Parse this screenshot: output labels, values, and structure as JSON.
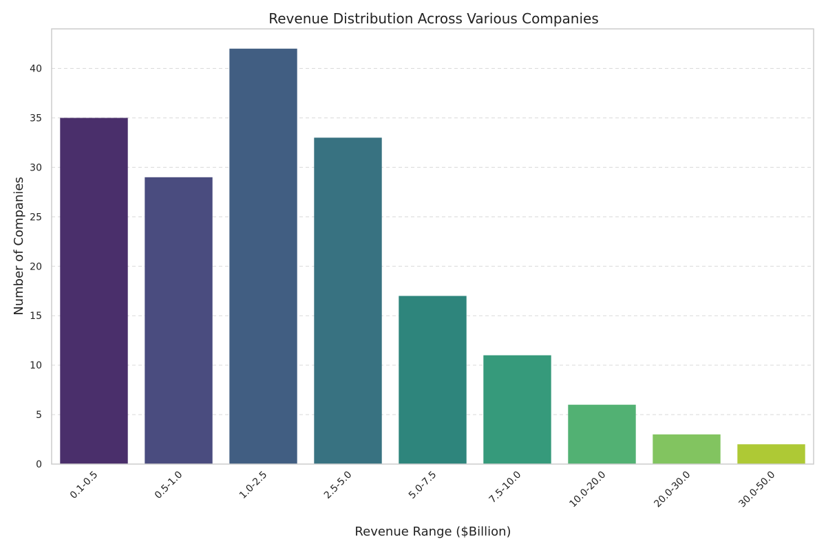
{
  "chart_data": {
    "type": "bar",
    "title": "Revenue Distribution Across Various Companies",
    "xlabel": "Revenue Range ($Billion)",
    "ylabel": "Number of Companies",
    "categories": [
      "0.1-0.5",
      "0.5-1.0",
      "1.0-2.5",
      "2.5-5.0",
      "5.0-7.5",
      "7.5-10.0",
      "10.0-20.0",
      "20.0-30.0",
      "30.0-50.0"
    ],
    "values": [
      35,
      29,
      42,
      33,
      17,
      11,
      6,
      3,
      2
    ],
    "ylim": [
      0,
      44
    ],
    "yticks": [
      0,
      5,
      10,
      15,
      20,
      25,
      30,
      35,
      40
    ],
    "grid": "horizontal dashed",
    "colors": [
      "#4a2f6b",
      "#4a4c7f",
      "#415e82",
      "#387281",
      "#2e857c",
      "#369a7b",
      "#52b173",
      "#82c460",
      "#aec935"
    ]
  }
}
